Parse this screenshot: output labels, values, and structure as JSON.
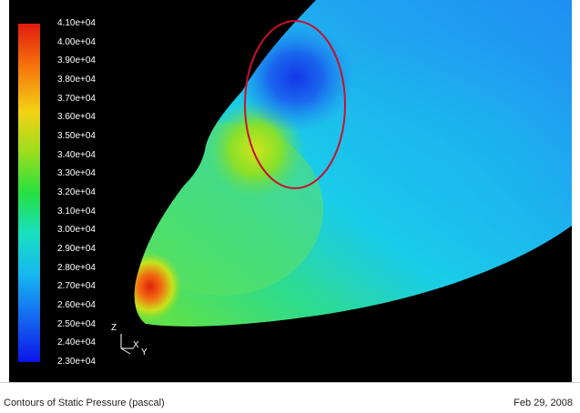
{
  "colorbar": {
    "ticks": [
      "4.10e+04",
      "4.00e+04",
      "3.90e+04",
      "3.80e+04",
      "3.70e+04",
      "3.60e+04",
      "3.50e+04",
      "3.40e+04",
      "3.30e+04",
      "3.20e+04",
      "3.10e+04",
      "3.00e+04",
      "2.90e+04",
      "2.80e+04",
      "2.70e+04",
      "2.60e+04",
      "2.50e+04",
      "2.40e+04",
      "2.30e+04"
    ],
    "max_color": "#d41f0c",
    "min_color": "#0b14e8"
  },
  "axes": {
    "z": "Z",
    "x": "X",
    "y": "Y"
  },
  "caption": {
    "title": "Contours of Static Pressure (pascal)",
    "date": "Feb 29, 2008"
  },
  "annotation": {
    "shape": "ellipse",
    "color": "#c8102e"
  }
}
